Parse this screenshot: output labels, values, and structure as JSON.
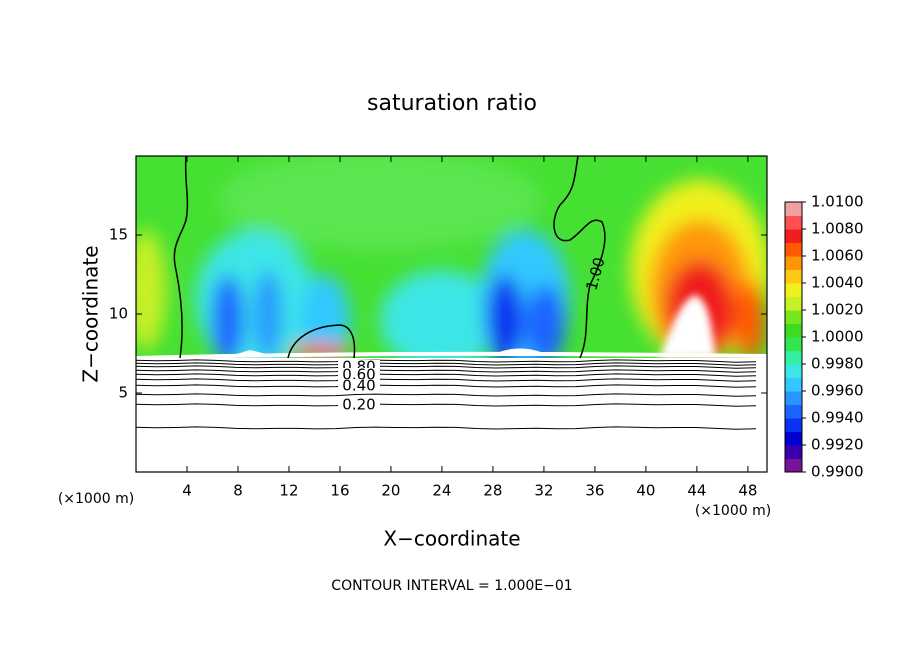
{
  "chart_data": {
    "type": "contour",
    "title": "saturation ratio",
    "xlabel": "X−coordinate",
    "ylabel": "Z−coordinate",
    "y_unit_label": "(×1000 m)",
    "x_unit_label": "(×1000 m)",
    "footer": "CONTOUR INTERVAL = 1.000E−01",
    "xlim": [
      0,
      49.5
    ],
    "ylim": [
      0,
      20
    ],
    "xticks": [
      4,
      8,
      12,
      16,
      20,
      24,
      28,
      32,
      36,
      40,
      44,
      48
    ],
    "yticks": [
      5,
      10,
      15
    ],
    "clim": [
      0.99,
      1.01
    ],
    "colorbar_ticks": [
      {
        "value": 1.01,
        "label": "1.0100"
      },
      {
        "value": 1.008,
        "label": "1.0080"
      },
      {
        "value": 1.006,
        "label": "1.0060"
      },
      {
        "value": 1.004,
        "label": "1.0040"
      },
      {
        "value": 1.002,
        "label": "1.0020"
      },
      {
        "value": 1.0,
        "label": "1.0000"
      },
      {
        "value": 0.998,
        "label": "0.9980"
      },
      {
        "value": 0.996,
        "label": "0.9960"
      },
      {
        "value": 0.994,
        "label": "0.9940"
      },
      {
        "value": 0.992,
        "label": "0.9920"
      },
      {
        "value": 0.99,
        "label": "0.9900"
      }
    ],
    "colorbar_colors": [
      "#7a1496",
      "#3a00b0",
      "#0000d0",
      "#0a32f0",
      "#1e64ff",
      "#2896ff",
      "#32c8ff",
      "#3ce6e6",
      "#32f0a0",
      "#32e650",
      "#3cdc1e",
      "#78e61e",
      "#c8f028",
      "#f0f01e",
      "#ffc814",
      "#ff960a",
      "#ff5a00",
      "#f01e1e",
      "#ff5050",
      "#f0a0a0"
    ],
    "contour_labels": [
      {
        "value": 1.0,
        "label": "1.00"
      },
      {
        "value": 0.8,
        "label": "0.80"
      },
      {
        "value": 0.6,
        "label": "0.60"
      },
      {
        "value": 0.4,
        "label": "0.40"
      },
      {
        "value": 0.2,
        "label": "0.20"
      }
    ]
  }
}
